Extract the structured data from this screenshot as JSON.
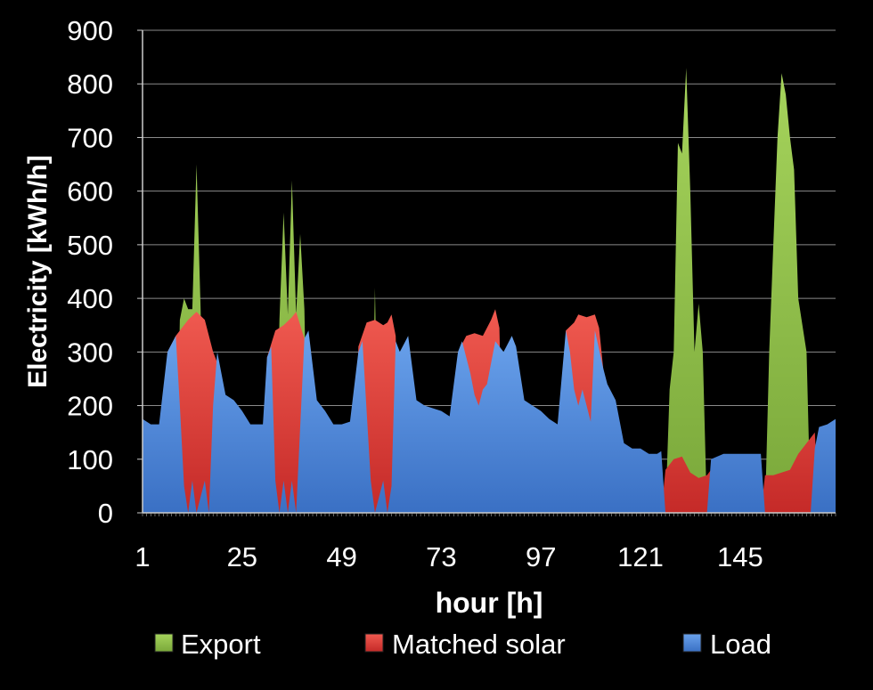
{
  "chart_data": {
    "type": "area",
    "xlabel": "hour [h]",
    "ylabel": "Electricity [kWh/h]",
    "ylim": [
      0,
      900
    ],
    "yticks": [
      0,
      100,
      200,
      300,
      400,
      500,
      600,
      700,
      800,
      900
    ],
    "xlim": [
      1,
      168
    ],
    "xticks": [
      1,
      25,
      49,
      73,
      97,
      121,
      145
    ],
    "grid": true,
    "legend_position": "bottom",
    "colors": {
      "Load": "#4a86d8",
      "Matched solar": "#e0403c",
      "Export": "#8fc04a"
    },
    "series": [
      {
        "name": "Load",
        "points": [
          [
            1,
            175
          ],
          [
            3,
            165
          ],
          [
            5,
            165
          ],
          [
            7,
            300
          ],
          [
            9,
            330
          ],
          [
            10,
            200
          ],
          [
            11,
            50
          ],
          [
            12,
            0
          ],
          [
            13,
            60
          ],
          [
            14,
            0
          ],
          [
            16,
            60
          ],
          [
            17,
            0
          ],
          [
            18,
            200
          ],
          [
            19,
            300
          ],
          [
            21,
            220
          ],
          [
            23,
            210
          ],
          [
            25,
            190
          ],
          [
            27,
            165
          ],
          [
            30,
            165
          ],
          [
            31,
            290
          ],
          [
            32,
            310
          ],
          [
            33,
            60
          ],
          [
            34,
            0
          ],
          [
            35,
            60
          ],
          [
            36,
            0
          ],
          [
            37,
            60
          ],
          [
            38,
            0
          ],
          [
            40,
            325
          ],
          [
            41,
            340
          ],
          [
            43,
            210
          ],
          [
            45,
            190
          ],
          [
            47,
            165
          ],
          [
            49,
            165
          ],
          [
            51,
            170
          ],
          [
            53,
            300
          ],
          [
            54,
            320
          ],
          [
            56,
            60
          ],
          [
            57,
            0
          ],
          [
            59,
            60
          ],
          [
            60,
            0
          ],
          [
            61,
            50
          ],
          [
            62,
            320
          ],
          [
            63,
            300
          ],
          [
            65,
            330
          ],
          [
            67,
            210
          ],
          [
            69,
            200
          ],
          [
            71,
            195
          ],
          [
            73,
            190
          ],
          [
            75,
            180
          ],
          [
            77,
            300
          ],
          [
            78,
            320
          ],
          [
            80,
            260
          ],
          [
            81,
            220
          ],
          [
            82,
            200
          ],
          [
            83,
            230
          ],
          [
            84,
            240
          ],
          [
            86,
            320
          ],
          [
            88,
            300
          ],
          [
            90,
            330
          ],
          [
            91,
            310
          ],
          [
            93,
            210
          ],
          [
            95,
            200
          ],
          [
            97,
            190
          ],
          [
            99,
            175
          ],
          [
            101,
            165
          ],
          [
            103,
            340
          ],
          [
            104,
            300
          ],
          [
            105,
            230
          ],
          [
            106,
            200
          ],
          [
            107,
            230
          ],
          [
            108,
            200
          ],
          [
            109,
            170
          ],
          [
            110,
            340
          ],
          [
            112,
            270
          ],
          [
            113,
            240
          ],
          [
            115,
            210
          ],
          [
            117,
            130
          ],
          [
            119,
            120
          ],
          [
            121,
            120
          ],
          [
            123,
            110
          ],
          [
            125,
            110
          ],
          [
            126,
            115
          ],
          [
            127,
            0
          ],
          [
            137,
            0
          ],
          [
            138,
            100
          ],
          [
            141,
            110
          ],
          [
            143,
            110
          ],
          [
            145,
            110
          ],
          [
            147,
            110
          ],
          [
            150,
            110
          ],
          [
            151,
            0
          ],
          [
            162,
            0
          ],
          [
            163,
            120
          ],
          [
            164,
            160
          ],
          [
            166,
            165
          ],
          [
            168,
            175
          ]
        ]
      },
      {
        "name": "Matched solar",
        "points": [
          [
            1,
            0
          ],
          [
            6,
            0
          ],
          [
            7,
            300
          ],
          [
            9,
            330
          ],
          [
            12,
            360
          ],
          [
            14,
            375
          ],
          [
            16,
            360
          ],
          [
            18,
            300
          ],
          [
            19,
            280
          ],
          [
            20,
            0
          ],
          [
            30,
            0
          ],
          [
            31,
            290
          ],
          [
            33,
            340
          ],
          [
            35,
            350
          ],
          [
            37,
            365
          ],
          [
            38,
            375
          ],
          [
            40,
            325
          ],
          [
            41,
            0
          ],
          [
            52,
            0
          ],
          [
            53,
            310
          ],
          [
            55,
            355
          ],
          [
            57,
            360
          ],
          [
            59,
            350
          ],
          [
            60,
            355
          ],
          [
            61,
            370
          ],
          [
            62,
            330
          ],
          [
            63,
            0
          ],
          [
            76,
            0
          ],
          [
            77,
            300
          ],
          [
            79,
            330
          ],
          [
            81,
            335
          ],
          [
            83,
            330
          ],
          [
            85,
            360
          ],
          [
            86,
            380
          ],
          [
            87,
            345
          ],
          [
            88,
            0
          ],
          [
            102,
            0
          ],
          [
            103,
            340
          ],
          [
            105,
            355
          ],
          [
            106,
            370
          ],
          [
            108,
            365
          ],
          [
            110,
            370
          ],
          [
            111,
            345
          ],
          [
            112,
            270
          ],
          [
            113,
            0
          ],
          [
            126,
            0
          ],
          [
            127,
            80
          ],
          [
            129,
            100
          ],
          [
            131,
            105
          ],
          [
            133,
            75
          ],
          [
            135,
            65
          ],
          [
            137,
            70
          ],
          [
            138,
            80
          ],
          [
            139,
            0
          ],
          [
            150,
            0
          ],
          [
            151,
            70
          ],
          [
            153,
            70
          ],
          [
            155,
            75
          ],
          [
            157,
            80
          ],
          [
            159,
            110
          ],
          [
            161,
            130
          ],
          [
            163,
            150
          ],
          [
            164,
            0
          ]
        ]
      },
      {
        "name": "Export",
        "points": [
          [
            1,
            0
          ],
          [
            9,
            0
          ],
          [
            10,
            360
          ],
          [
            11,
            400
          ],
          [
            12,
            380
          ],
          [
            13,
            380
          ],
          [
            14,
            650
          ],
          [
            15,
            380
          ],
          [
            16,
            0
          ],
          [
            33,
            0
          ],
          [
            34,
            360
          ],
          [
            35,
            560
          ],
          [
            36,
            370
          ],
          [
            37,
            620
          ],
          [
            38,
            370
          ],
          [
            39,
            520
          ],
          [
            40,
            380
          ],
          [
            41,
            0
          ],
          [
            56,
            0
          ],
          [
            57,
            420
          ],
          [
            58,
            0
          ],
          [
            127,
            0
          ],
          [
            128,
            230
          ],
          [
            129,
            300
          ],
          [
            130,
            690
          ],
          [
            131,
            670
          ],
          [
            132,
            830
          ],
          [
            133,
            600
          ],
          [
            134,
            300
          ],
          [
            135,
            390
          ],
          [
            136,
            300
          ],
          [
            137,
            0
          ],
          [
            151,
            0
          ],
          [
            152,
            300
          ],
          [
            153,
            500
          ],
          [
            154,
            700
          ],
          [
            155,
            820
          ],
          [
            156,
            780
          ],
          [
            157,
            700
          ],
          [
            158,
            640
          ],
          [
            159,
            400
          ],
          [
            161,
            300
          ],
          [
            162,
            0
          ]
        ]
      }
    ]
  }
}
